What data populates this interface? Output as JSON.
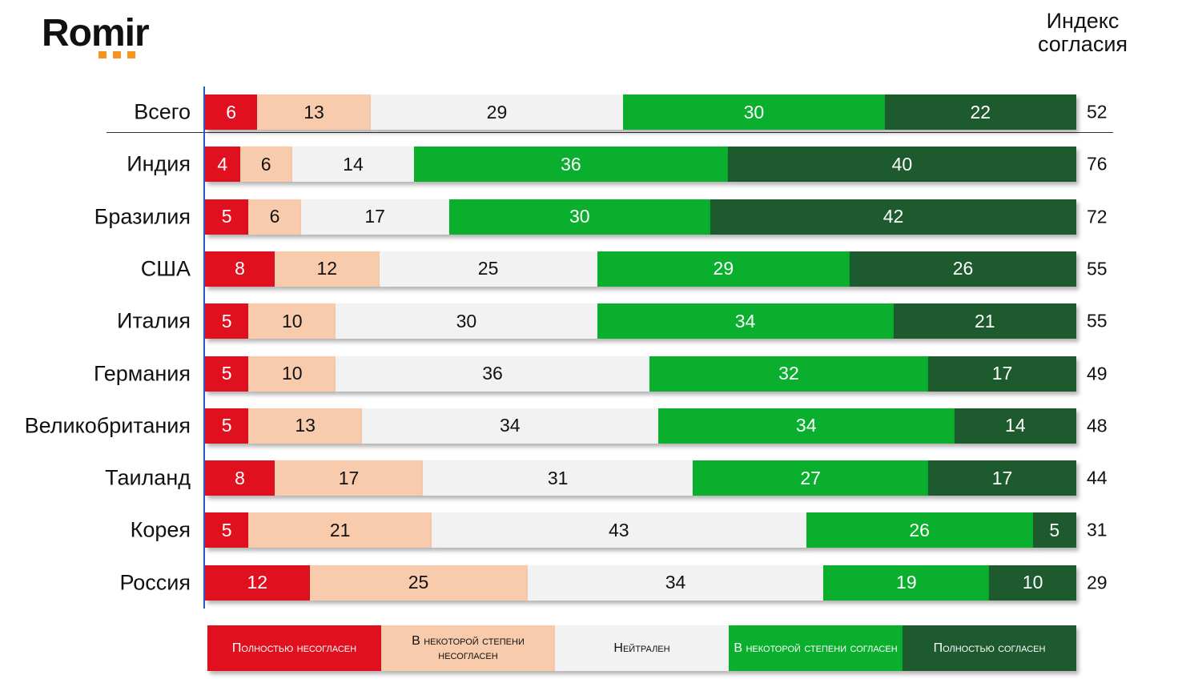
{
  "logo": "Romir",
  "chart_data": {
    "type": "bar",
    "orientation": "horizontal-stacked-100",
    "index_title": "Индекс согласия",
    "categories": [
      "Всего",
      "Индия",
      "Бразилия",
      "США",
      "Италия",
      "Германия",
      "Великобритания",
      "Таиланд",
      "Корея",
      "Россия"
    ],
    "series": [
      {
        "name": "Полностью несогласен",
        "color": "#e0101e",
        "text_color": "#ffffff",
        "values": [
          6,
          4,
          5,
          8,
          5,
          5,
          5,
          8,
          5,
          12
        ]
      },
      {
        "name": "В некоторой степени несогласен",
        "color": "#f8cbad",
        "text_color": "#111111",
        "values": [
          13,
          6,
          6,
          12,
          10,
          10,
          13,
          17,
          21,
          25
        ]
      },
      {
        "name": "Нейтрален",
        "color": "#f2f2f2",
        "text_color": "#111111",
        "values": [
          29,
          14,
          17,
          25,
          30,
          36,
          34,
          31,
          43,
          34
        ]
      },
      {
        "name": "В некоторой степени согласен",
        "color": "#0aaf2e",
        "text_color": "#ffffff",
        "values": [
          30,
          36,
          30,
          29,
          34,
          32,
          34,
          27,
          26,
          19
        ]
      },
      {
        "name": "Полностью согласен",
        "color": "#1d5a2e",
        "text_color": "#ffffff",
        "values": [
          22,
          40,
          42,
          26,
          21,
          17,
          14,
          17,
          5,
          10
        ]
      }
    ],
    "index_values": [
      52,
      76,
      72,
      55,
      55,
      49,
      48,
      44,
      31,
      29
    ],
    "legend_position": "bottom"
  }
}
